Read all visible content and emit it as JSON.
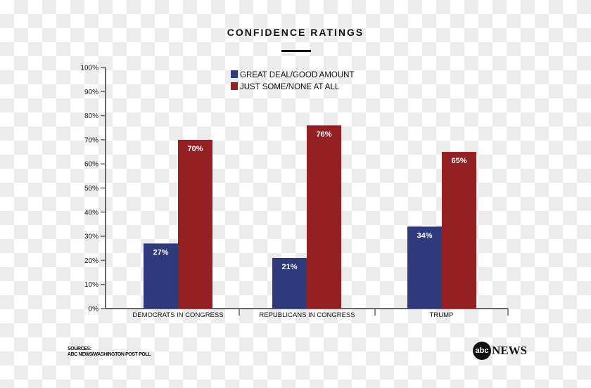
{
  "chart_data": {
    "type": "bar",
    "title": "CONFIDENCE RATINGS",
    "categories": [
      "DEMOCRATS IN CONGRESS",
      "REPUBLICANS IN CONGRESS",
      "TRUMP"
    ],
    "series": [
      {
        "name": "GREAT DEAL/GOOD AMOUNT",
        "values": [
          27,
          21,
          34
        ],
        "color": "#2e3a7c"
      },
      {
        "name": "JUST SOME/NONE AT ALL",
        "values": [
          70,
          76,
          65
        ],
        "color": "#952023"
      }
    ],
    "ylim": [
      0,
      100
    ],
    "yticks": [
      "0%",
      "10%",
      "20%",
      "30%",
      "40%",
      "50%",
      "60%",
      "70%",
      "80%",
      "90%",
      "100%"
    ],
    "legend": "top-center",
    "grid": false
  },
  "source": {
    "line1": "SOURCES:",
    "line2": "ABC NEWS/WASHINGTON POST POLL"
  },
  "logo": {
    "circle": "abc",
    "text": "NEWS"
  }
}
